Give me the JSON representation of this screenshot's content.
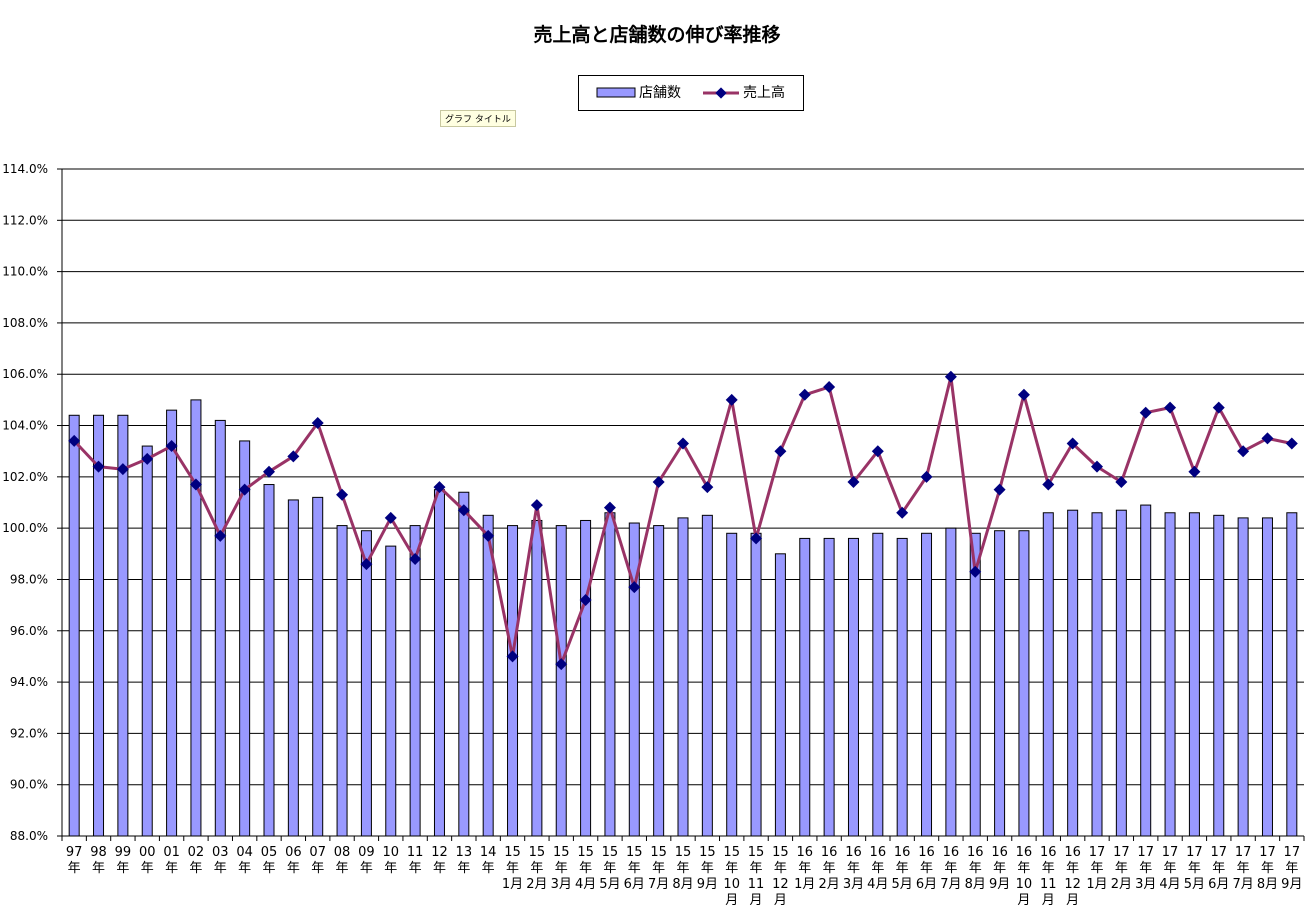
{
  "chart_data": {
    "type": "bar+line",
    "title": "売上高と店舗数の伸び率推移",
    "tooltip": "グラフ タイトル",
    "ylim": [
      88.0,
      114.0
    ],
    "y_ticks": [
      "88.0%",
      "90.0%",
      "92.0%",
      "94.0%",
      "96.0%",
      "98.0%",
      "100.0%",
      "102.0%",
      "104.0%",
      "106.0%",
      "108.0%",
      "110.0%",
      "112.0%",
      "114.0%"
    ],
    "grid": true,
    "legend_position": "top-center",
    "categories": [
      [
        "97",
        "年"
      ],
      [
        "98",
        "年"
      ],
      [
        "99",
        "年"
      ],
      [
        "00",
        "年"
      ],
      [
        "01",
        "年"
      ],
      [
        "02",
        "年"
      ],
      [
        "03",
        "年"
      ],
      [
        "04",
        "年"
      ],
      [
        "05",
        "年"
      ],
      [
        "06",
        "年"
      ],
      [
        "07",
        "年"
      ],
      [
        "08",
        "年"
      ],
      [
        "09",
        "年"
      ],
      [
        "10",
        "年"
      ],
      [
        "11",
        "年"
      ],
      [
        "12",
        "年"
      ],
      [
        "13",
        "年"
      ],
      [
        "14",
        "年"
      ],
      [
        "15",
        "年",
        "1月"
      ],
      [
        "15",
        "年",
        "2月"
      ],
      [
        "15",
        "年",
        "3月"
      ],
      [
        "15",
        "年",
        "4月"
      ],
      [
        "15",
        "年",
        "5月"
      ],
      [
        "15",
        "年",
        "6月"
      ],
      [
        "15",
        "年",
        "7月"
      ],
      [
        "15",
        "年",
        "8月"
      ],
      [
        "15",
        "年",
        "9月"
      ],
      [
        "15",
        "年",
        "10",
        "月"
      ],
      [
        "15",
        "年",
        "11",
        "月"
      ],
      [
        "15",
        "年",
        "12",
        "月"
      ],
      [
        "16",
        "年",
        "1月"
      ],
      [
        "16",
        "年",
        "2月"
      ],
      [
        "16",
        "年",
        "3月"
      ],
      [
        "16",
        "年",
        "4月"
      ],
      [
        "16",
        "年",
        "5月"
      ],
      [
        "16",
        "年",
        "6月"
      ],
      [
        "16",
        "年",
        "7月"
      ],
      [
        "16",
        "年",
        "8月"
      ],
      [
        "16",
        "年",
        "9月"
      ],
      [
        "16",
        "年",
        "10",
        "月"
      ],
      [
        "16",
        "年",
        "11",
        "月"
      ],
      [
        "16",
        "年",
        "12",
        "月"
      ],
      [
        "17",
        "年",
        "1月"
      ],
      [
        "17",
        "年",
        "2月"
      ],
      [
        "17",
        "年",
        "3月"
      ],
      [
        "17",
        "年",
        "4月"
      ],
      [
        "17",
        "年",
        "5月"
      ],
      [
        "17",
        "年",
        "6月"
      ],
      [
        "17",
        "年",
        "7月"
      ],
      [
        "17",
        "年",
        "8月"
      ],
      [
        "17",
        "年",
        "9月"
      ]
    ],
    "series": [
      {
        "name": "店舗数",
        "type": "bar",
        "color": "#9999ff",
        "values": [
          104.4,
          104.4,
          104.4,
          103.2,
          104.6,
          105.0,
          104.2,
          103.4,
          101.7,
          101.1,
          101.2,
          100.1,
          99.9,
          99.3,
          100.1,
          101.5,
          101.4,
          100.5,
          100.1,
          100.3,
          100.1,
          100.3,
          100.6,
          100.2,
          100.1,
          100.4,
          100.5,
          99.8,
          99.8,
          99.0,
          99.6,
          99.6,
          99.6,
          99.8,
          99.6,
          99.8,
          100.0,
          99.8,
          99.9,
          99.9,
          100.6,
          100.7,
          100.6,
          100.7,
          100.9,
          100.6,
          100.6,
          100.5,
          100.4,
          100.4,
          100.6
        ]
      },
      {
        "name": "売上高",
        "type": "line",
        "color": "#993366",
        "marker_color": "#000080",
        "values": [
          103.4,
          102.4,
          102.3,
          102.7,
          103.2,
          101.7,
          99.7,
          101.5,
          102.2,
          102.8,
          104.1,
          101.3,
          98.6,
          100.4,
          98.8,
          101.6,
          100.7,
          99.7,
          95.0,
          100.9,
          94.7,
          97.2,
          100.8,
          97.7,
          101.8,
          103.3,
          101.6,
          105.0,
          99.6,
          103.0,
          105.2,
          105.5,
          101.8,
          103.0,
          100.6,
          102.0,
          105.9,
          98.3,
          101.5,
          105.2,
          101.7,
          103.3,
          102.4,
          101.8,
          104.5,
          104.7,
          102.2,
          104.7,
          103.0,
          103.5,
          103.3
        ]
      }
    ]
  }
}
